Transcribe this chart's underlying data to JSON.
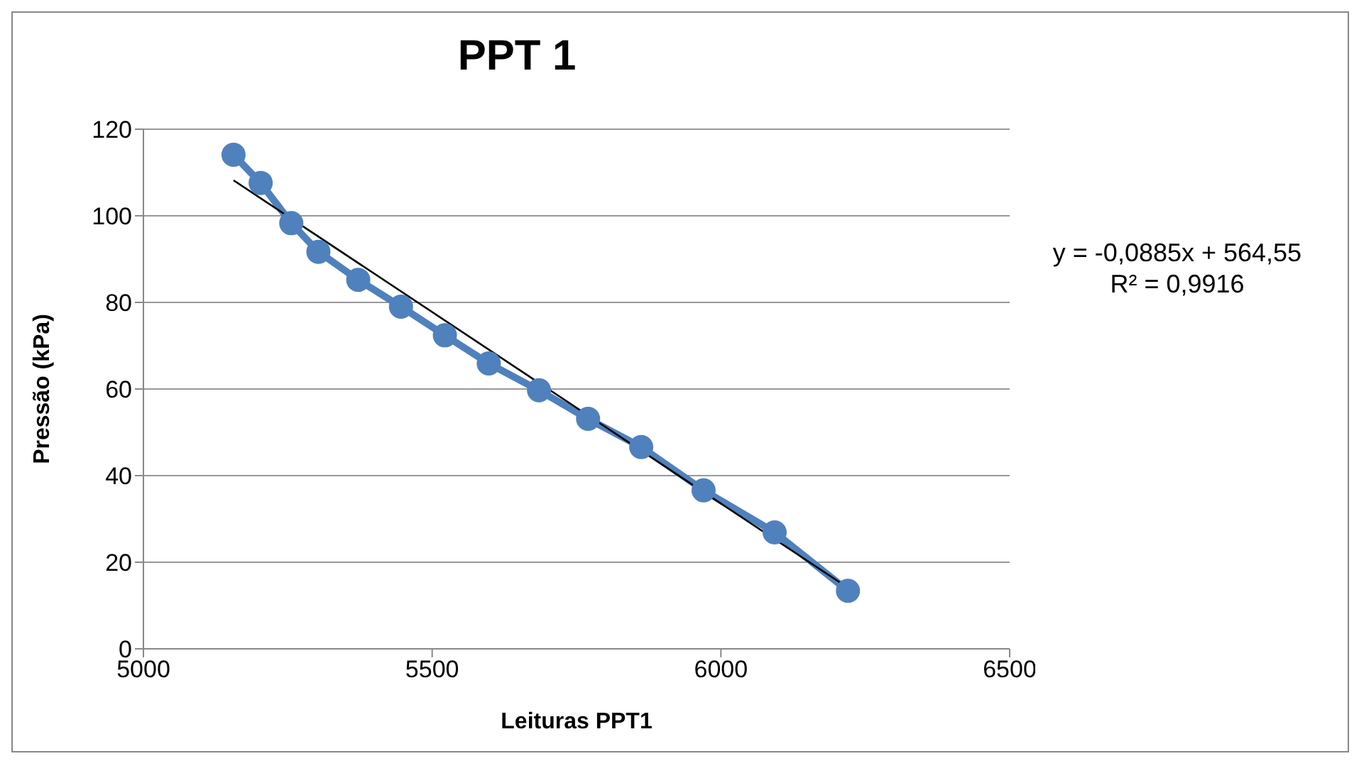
{
  "chart_data": {
    "type": "line",
    "title": "PPT 1",
    "xlabel": "Leituras PPT1",
    "ylabel": "Pressão (kPa)",
    "xlim": [
      5000,
      6500
    ],
    "xticks": [
      5000,
      5500,
      6000,
      6500
    ],
    "ylim": [
      0,
      120
    ],
    "yticks": [
      0,
      20,
      40,
      60,
      80,
      100,
      120
    ],
    "grid": "y",
    "marker": "circle",
    "annotations": [
      "y = -0,0885x + 564,55",
      "R² = 0,9916"
    ],
    "series": [
      {
        "color": "#4f81bd",
        "x": [
          5156,
          5203,
          5256,
          5303,
          5372,
          5446,
          5522,
          5598,
          5685,
          5770,
          5862,
          5970,
          6093,
          6220
        ],
        "values": [
          114.1,
          107.6,
          98.3,
          91.7,
          85.2,
          79.0,
          72.4,
          65.9,
          59.7,
          53.1,
          46.6,
          36.6,
          26.9,
          13.4
        ]
      },
      {
        "type": "line",
        "color": "#000000",
        "marker": "none",
        "x": [
          5156,
          6220
        ],
        "values": [
          108.2,
          14.1
        ]
      }
    ]
  }
}
